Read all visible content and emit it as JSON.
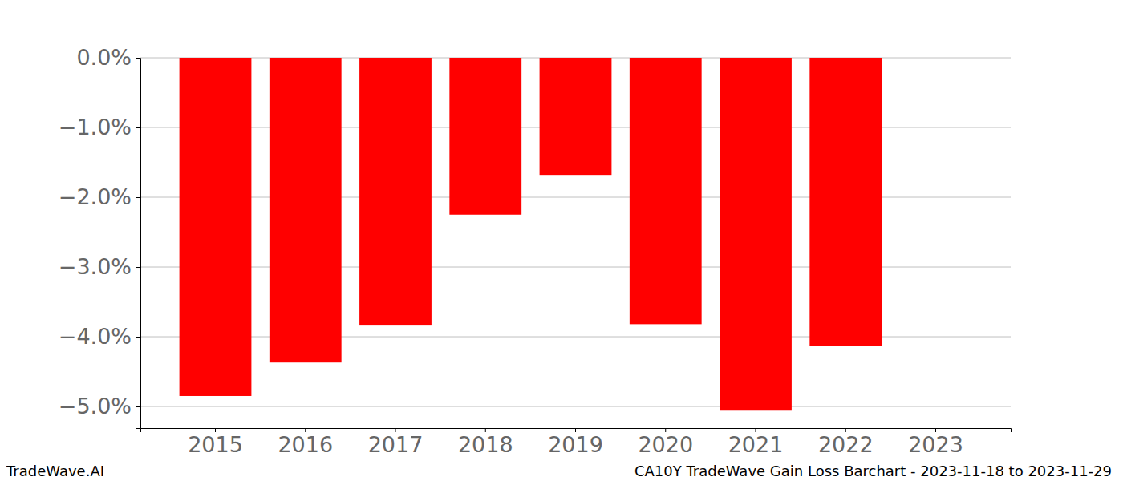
{
  "chart_data": {
    "type": "bar",
    "title": "CA10Y TradeWave Gain Loss Barchart - 2023-11-18 to 2023-11-29",
    "annotations": [
      "TradeWave.AI"
    ],
    "categories": [
      "2015",
      "2016",
      "2017",
      "2018",
      "2019",
      "2020",
      "2021",
      "2022",
      "2023"
    ],
    "values": [
      -4.85,
      -4.37,
      -3.84,
      -2.25,
      -1.68,
      -3.82,
      -5.06,
      -4.13,
      0
    ],
    "color": "#ff0000",
    "ylim": [
      -5.31,
      0
    ],
    "yticks": [
      {
        "value": 0,
        "label": "0.0%"
      },
      {
        "value": -1,
        "label": "−1.0%"
      },
      {
        "value": -2,
        "label": "−2.0%"
      },
      {
        "value": -3,
        "label": "−3.0%"
      },
      {
        "value": -4,
        "label": "−4.0%"
      },
      {
        "value": -5,
        "label": "−5.0%"
      }
    ],
    "grid": true
  }
}
